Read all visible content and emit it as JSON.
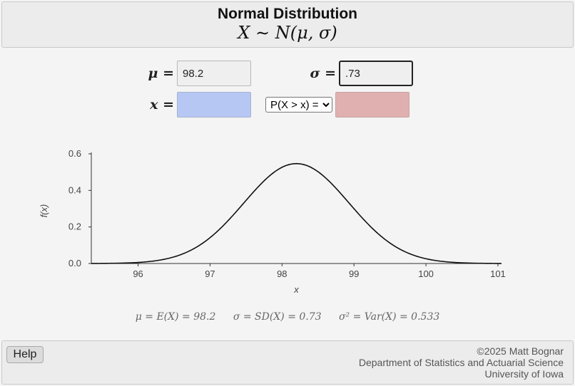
{
  "header": {
    "title": "Normal Distribution",
    "formula": "X ∼ N(μ, σ)"
  },
  "inputs": {
    "mu_symbol": "μ =",
    "mu_value": "98.2",
    "sigma_symbol": "σ =",
    "sigma_value": ".73",
    "x_symbol": "x =",
    "x_value": "",
    "prob_value": "",
    "operator_options": [
      "P(X > x) ="
    ],
    "operator_selected": "P(X > x) ="
  },
  "chart_data": {
    "type": "line",
    "distribution": "normal",
    "mu": 98.2,
    "sigma": 0.73,
    "xlim": [
      95.35,
      101.05
    ],
    "ylim": [
      0,
      0.6
    ],
    "x_ticks": [
      "96",
      "97",
      "98",
      "99",
      "100",
      "101"
    ],
    "y_ticks": [
      "0.0",
      "0.2",
      "0.4",
      "0.6"
    ],
    "xlabel": "x",
    "ylabel": "f(x)",
    "peak_density": 0.5465,
    "line_color": "#111111"
  },
  "stats": {
    "mean": "μ = E(X) = 98.2",
    "sd": "σ = SD(X) = 0.73",
    "var": "σ² = Var(X) = 0.533"
  },
  "footer": {
    "help_label": "Help",
    "copyright": "©2025 Matt Bognar",
    "department": "Department of Statistics and Actuarial Science",
    "university": "University of Iowa"
  },
  "colors": {
    "x_field": "#b7c7f4",
    "prob_field": "#e0b0b0"
  }
}
